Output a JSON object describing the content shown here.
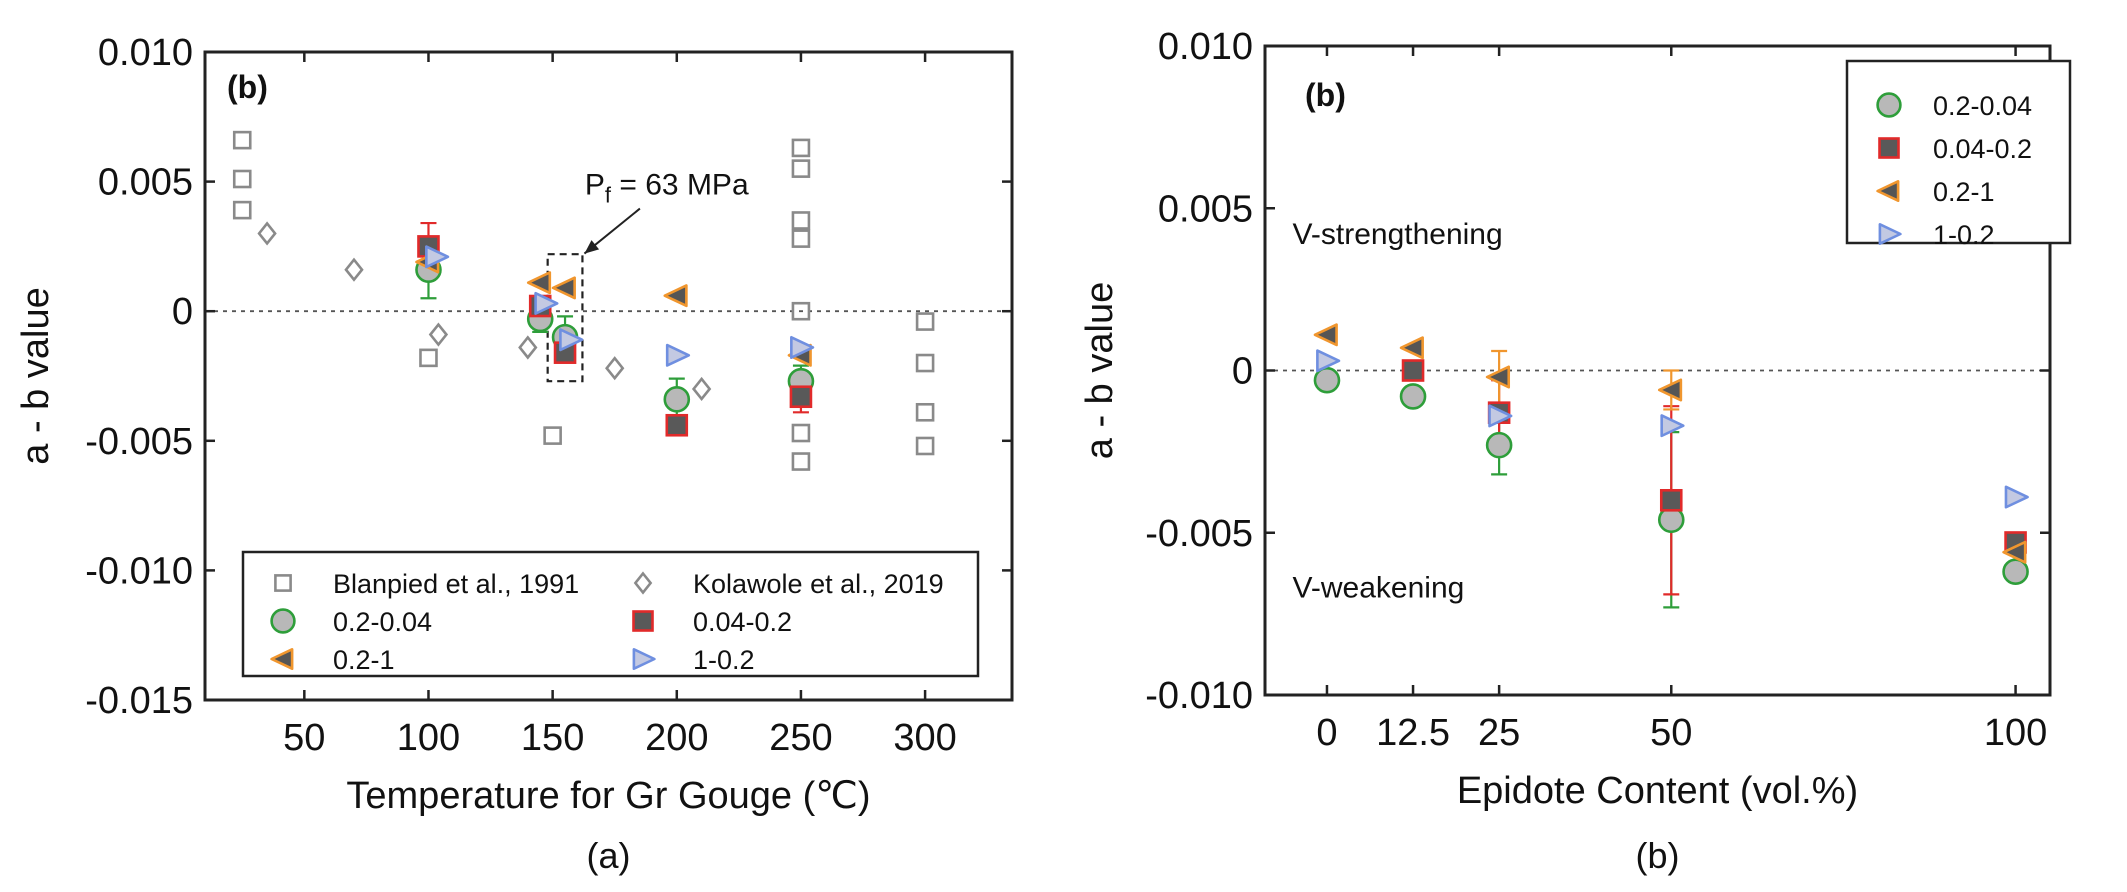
{
  "colors": {
    "gray_open": "#8a8a8a",
    "green": "#2e9e3a",
    "green_fill": "#b8b8b8",
    "red": "#e12a2a",
    "red_fill": "#595959",
    "orange": "#f0962e",
    "orange_fill": "#555555",
    "blue": "#6f8fe0",
    "blue_fill": "#c3c9e2"
  },
  "chart_data": [
    {
      "type": "scatter",
      "panel_label": "(b)",
      "caption": "(a)",
      "xlabel": "Temperature for Gr Gouge (℃)",
      "ylabel": "a - b value",
      "xlim": [
        10,
        335
      ],
      "ylim": [
        -0.015,
        0.01
      ],
      "xticks": [
        50,
        100,
        150,
        200,
        250,
        300
      ],
      "xtick_labels": [
        "50",
        "100",
        "150",
        "200",
        "250",
        "300"
      ],
      "yticks": [
        0.01,
        0.005,
        0,
        -0.005,
        -0.01,
        -0.015
      ],
      "ytick_labels": [
        "0.010",
        "0.005",
        "0",
        "-0.005",
        "-0.010",
        "-0.015"
      ],
      "zero_line": true,
      "annotation": {
        "text_main": "P",
        "text_sub": "f",
        "text_rest": " = 63 MPa",
        "arrow_to": [
          162,
          0.0023
        ],
        "text_at": [
          163,
          0.0045
        ]
      },
      "highlight_box": {
        "x": [
          148,
          162
        ],
        "y": [
          -0.0027,
          0.0022
        ]
      },
      "legend": {
        "position": "bottom",
        "columns": 2,
        "entries": [
          {
            "label": "Blanpied et al., 1991",
            "series": "blanpied"
          },
          {
            "label": "Kolawole et al., 2019",
            "series": "kolawole"
          },
          {
            "label": "0.2-0.04",
            "series": "s1"
          },
          {
            "label": "0.04-0.2",
            "series": "s2"
          },
          {
            "label": "0.2-1",
            "series": "s3"
          },
          {
            "label": "1-0.2",
            "series": "s4"
          }
        ]
      },
      "series": [
        {
          "id": "blanpied",
          "name": "Blanpied et al., 1991",
          "marker": "open-square",
          "points": [
            [
              25,
              0.0066
            ],
            [
              25,
              0.0051
            ],
            [
              25,
              0.0039
            ],
            [
              100,
              -0.0018
            ],
            [
              150,
              -0.0048
            ],
            [
              250,
              0.0063
            ],
            [
              250,
              0.0055
            ],
            [
              250,
              0.0035
            ],
            [
              250,
              0.0028
            ],
            [
              250,
              0.0
            ],
            [
              250,
              -0.0047
            ],
            [
              250,
              -0.0058
            ],
            [
              300,
              -0.0004
            ],
            [
              300,
              -0.002
            ],
            [
              300,
              -0.0039
            ],
            [
              300,
              -0.0052
            ]
          ]
        },
        {
          "id": "kolawole",
          "name": "Kolawole et al., 2019",
          "marker": "open-diamond",
          "points": [
            [
              35,
              0.003
            ],
            [
              70,
              0.0016
            ],
            [
              104,
              -0.0009
            ],
            [
              140,
              -0.0014
            ],
            [
              175,
              -0.0022
            ],
            [
              210,
              -0.003
            ]
          ]
        },
        {
          "id": "s1",
          "name": "0.2-0.04",
          "marker": "circle",
          "points": [
            [
              100,
              0.0016
            ],
            [
              145,
              -0.0003
            ],
            [
              155,
              -0.001
            ],
            [
              200,
              -0.0034
            ],
            [
              250,
              -0.0027
            ]
          ],
          "errors": [
            [
              100,
              0.0005,
              0.0027
            ],
            [
              145,
              -0.0008,
              0.0002
            ],
            [
              155,
              -0.0018,
              -0.0002
            ],
            [
              200,
              -0.0042,
              -0.0026
            ],
            [
              250,
              -0.0033,
              -0.0021
            ]
          ]
        },
        {
          "id": "s2",
          "name": "0.04-0.2",
          "marker": "square",
          "points": [
            [
              100,
              0.0025
            ],
            [
              145,
              0.0002
            ],
            [
              155,
              -0.0016
            ],
            [
              200,
              -0.0044
            ],
            [
              250,
              -0.0033
            ]
          ],
          "errors": [
            [
              100,
              0.0016,
              0.0034
            ],
            [
              250,
              -0.0039,
              -0.0027
            ]
          ]
        },
        {
          "id": "s3",
          "name": "0.2-1",
          "marker": "triangle-left",
          "points": [
            [
              100,
              0.0019
            ],
            [
              145,
              0.0011
            ],
            [
              155,
              0.0009
            ],
            [
              200,
              0.0006
            ],
            [
              250,
              -0.0017
            ]
          ],
          "errors": []
        },
        {
          "id": "s4",
          "name": "1-0.2",
          "marker": "triangle-right",
          "points": [
            [
              103,
              0.0021
            ],
            [
              147,
              0.0003
            ],
            [
              157,
              -0.0011
            ],
            [
              200,
              -0.0017
            ],
            [
              250,
              -0.0014
            ]
          ],
          "errors": []
        }
      ]
    },
    {
      "type": "scatter",
      "panel_label": "(b)",
      "caption": "(b)",
      "xlabel": "Epidote Content (vol.%)",
      "ylabel": "a - b value",
      "xlim": [
        -9,
        105
      ],
      "ylim": [
        -0.01,
        0.01
      ],
      "xticks": [
        0,
        12.5,
        25,
        50,
        100
      ],
      "xtick_labels": [
        "0",
        "12.5",
        "25",
        "50",
        "100"
      ],
      "yticks": [
        0.01,
        0.005,
        0,
        -0.005,
        -0.01
      ],
      "ytick_labels": [
        "0.010",
        "0.005",
        "0",
        "-0.005",
        "-0.010"
      ],
      "zero_line": true,
      "region_labels": [
        {
          "text": "V-strengthening",
          "x": -5,
          "y": 0.0039
        },
        {
          "text": "V-weakening",
          "x": -5,
          "y": -0.007
        }
      ],
      "legend": {
        "position": "top-right",
        "columns": 1,
        "entries": [
          {
            "label": "0.2-0.04",
            "series": "s1"
          },
          {
            "label": "0.04-0.2",
            "series": "s2"
          },
          {
            "label": "0.2-1",
            "series": "s3"
          },
          {
            "label": "1-0.2",
            "series": "s4"
          }
        ]
      },
      "series": [
        {
          "id": "s1",
          "name": "0.2-0.04",
          "marker": "circle",
          "points": [
            [
              0,
              -0.0003
            ],
            [
              12.5,
              -0.0008
            ],
            [
              25,
              -0.0023
            ],
            [
              50,
              -0.0046
            ],
            [
              100,
              -0.0062
            ]
          ],
          "errors": [
            [
              12.5,
              -0.0008,
              -0.0008
            ],
            [
              25,
              -0.0032,
              -0.0014
            ],
            [
              50,
              -0.0073,
              -0.0019
            ]
          ]
        },
        {
          "id": "s2",
          "name": "0.04-0.2",
          "marker": "square",
          "points": [
            [
              12.5,
              0.0
            ],
            [
              25,
              -0.0013
            ],
            [
              50,
              -0.004
            ],
            [
              100,
              -0.0053
            ]
          ],
          "errors": [
            [
              25,
              -0.0023,
              -0.0003
            ],
            [
              50,
              -0.0069,
              -0.0011
            ]
          ]
        },
        {
          "id": "s3",
          "name": "0.2-1",
          "marker": "triangle-left",
          "points": [
            [
              0,
              0.0011
            ],
            [
              12.5,
              0.0007
            ],
            [
              25,
              -0.0002
            ],
            [
              50,
              -0.0006
            ],
            [
              100,
              -0.0056
            ]
          ],
          "errors": [
            [
              25,
              -0.0012,
              0.0006
            ],
            [
              50,
              -0.0012,
              0.0
            ]
          ]
        },
        {
          "id": "s4",
          "name": "1-0.2",
          "marker": "triangle-right",
          "points": [
            [
              0,
              0.0003
            ],
            [
              25,
              -0.0014
            ],
            [
              50,
              -0.0017
            ],
            [
              100,
              -0.0039
            ]
          ],
          "errors": []
        }
      ]
    }
  ]
}
